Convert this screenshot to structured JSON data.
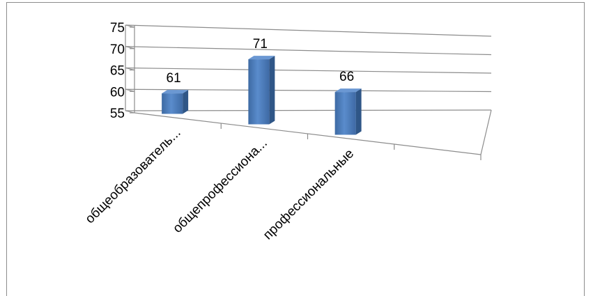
{
  "chart_data": {
    "type": "bar",
    "categories": [
      "общеобразователь...",
      "общепрофессиона...",
      "профессиональные"
    ],
    "values": [
      61,
      71,
      66
    ],
    "ylim": [
      55,
      75
    ],
    "yticks": [
      "75",
      "70",
      "65",
      "60",
      "55"
    ],
    "data_labels": [
      "61",
      "71",
      "66"
    ],
    "grid": true,
    "legend": "none",
    "bar_color": "#4f81bd"
  }
}
